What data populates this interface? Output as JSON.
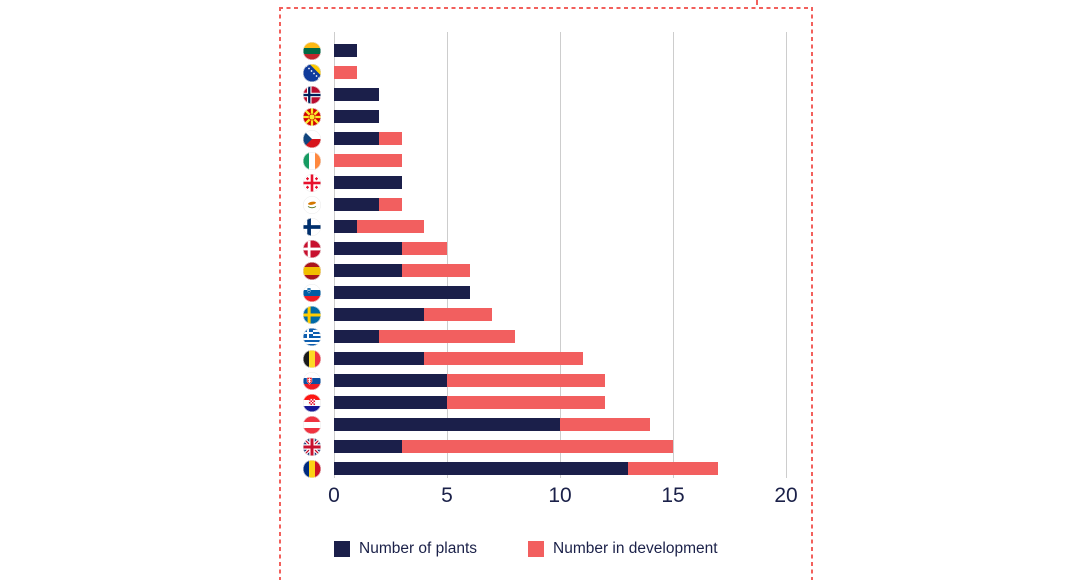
{
  "chart_data": {
    "type": "bar",
    "orientation": "horizontal",
    "stacked": true,
    "title": "",
    "xlabel": "",
    "ylabel": "",
    "xlim": [
      0,
      20
    ],
    "x_ticks": [
      "0",
      "5",
      "10",
      "15",
      "20"
    ],
    "grid": "vertical-gridlines",
    "legend_position": "bottom",
    "series_names": [
      "Number of plants",
      "Number in development"
    ],
    "rows": [
      {
        "country": "Lithuania",
        "flag": "lithuania",
        "plants": 1,
        "in_development": 0
      },
      {
        "country": "Bosnia and Herzegovina",
        "flag": "bosnia-and-herzegovina",
        "plants": 0,
        "in_development": 1
      },
      {
        "country": "Norway",
        "flag": "norway",
        "plants": 2,
        "in_development": 0
      },
      {
        "country": "North Macedonia",
        "flag": "north-macedonia",
        "plants": 2,
        "in_development": 0
      },
      {
        "country": "Czech Republic",
        "flag": "czech-republic",
        "plants": 2,
        "in_development": 1
      },
      {
        "country": "Ireland",
        "flag": "ireland",
        "plants": 0,
        "in_development": 3
      },
      {
        "country": "Georgia",
        "flag": "georgia",
        "plants": 3,
        "in_development": 0
      },
      {
        "country": "Cyprus",
        "flag": "cyprus",
        "plants": 2,
        "in_development": 1
      },
      {
        "country": "Finland",
        "flag": "finland",
        "plants": 1,
        "in_development": 3
      },
      {
        "country": "Denmark",
        "flag": "denmark",
        "plants": 3,
        "in_development": 2
      },
      {
        "country": "Spain",
        "flag": "spain",
        "plants": 3,
        "in_development": 3
      },
      {
        "country": "Slovenia",
        "flag": "slovenia",
        "plants": 6,
        "in_development": 0
      },
      {
        "country": "Sweden",
        "flag": "sweden",
        "plants": 4,
        "in_development": 3
      },
      {
        "country": "Greece",
        "flag": "greece",
        "plants": 2,
        "in_development": 6
      },
      {
        "country": "Belgium",
        "flag": "belgium",
        "plants": 4,
        "in_development": 7
      },
      {
        "country": "Slovakia",
        "flag": "slovakia",
        "plants": 5,
        "in_development": 7
      },
      {
        "country": "Croatia",
        "flag": "croatia",
        "plants": 5,
        "in_development": 7
      },
      {
        "country": "Austria",
        "flag": "austria",
        "plants": 10,
        "in_development": 4
      },
      {
        "country": "United Kingdom",
        "flag": "united-kingdom",
        "plants": 3,
        "in_development": 12
      },
      {
        "country": "Romania",
        "flag": "romania",
        "plants": 13,
        "in_development": 4
      }
    ]
  },
  "legend": {
    "plants_label": "Number of plants",
    "development_label": "Number in development"
  },
  "colors": {
    "plants": "#1b1f4a",
    "development": "#f25f5f",
    "gridline": "#cdcdcd",
    "axis_text": "#1b2149",
    "border": "#f2605c",
    "background": "#ffffff"
  }
}
